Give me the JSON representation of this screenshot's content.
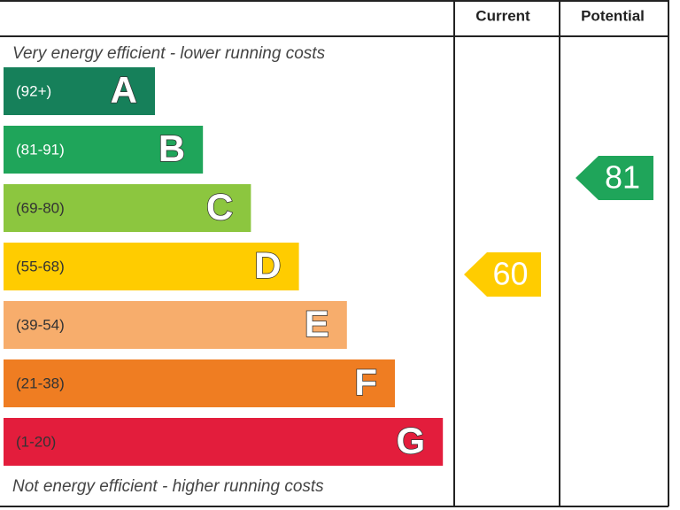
{
  "header": {
    "current": "Current",
    "potential": "Potential"
  },
  "top_note": "Very energy efficient - lower running costs",
  "bottom_note": "Not energy efficient - higher running costs",
  "bands": [
    {
      "range": "(92+)",
      "letter": "A",
      "color": "#16805a"
    },
    {
      "range": "(81-91)",
      "letter": "B",
      "color": "#1fa55a"
    },
    {
      "range": "(69-80)",
      "letter": "C",
      "color": "#8cc63f"
    },
    {
      "range": "(55-68)",
      "letter": "D",
      "color": "#ffcc00"
    },
    {
      "range": "(39-54)",
      "letter": "E",
      "color": "#f7ad6c"
    },
    {
      "range": "(21-38)",
      "letter": "F",
      "color": "#ef7d22"
    },
    {
      "range": "(1-20)",
      "letter": "G",
      "color": "#e31d3c"
    }
  ],
  "current": {
    "value": 60,
    "color": "#ffcc00"
  },
  "potential": {
    "value": 81,
    "color": "#1fa55a"
  }
}
